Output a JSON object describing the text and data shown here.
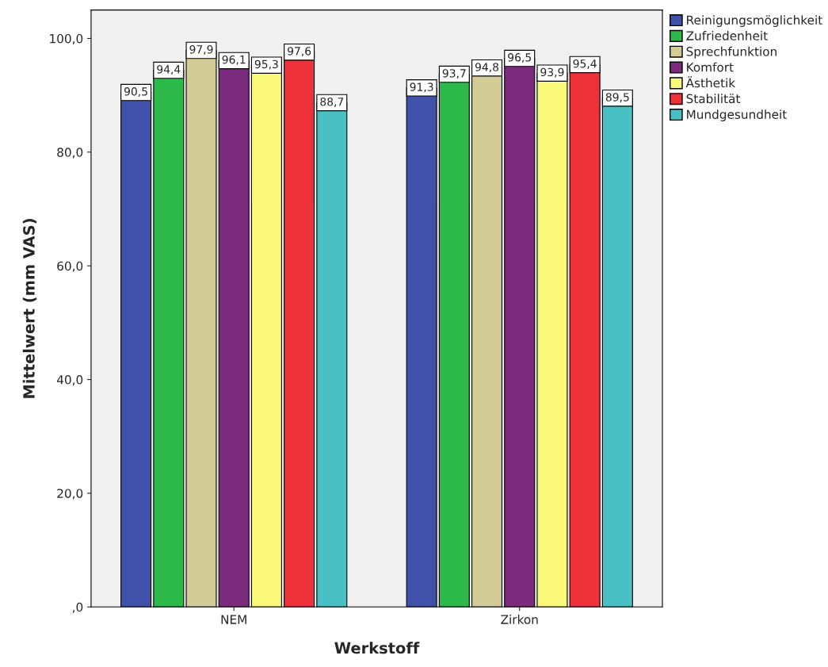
{
  "chart_data": {
    "type": "bar",
    "xlabel": "Werkstoff",
    "ylabel": "Mittelwert (mm VAS)",
    "categories": [
      "NEM",
      "Zirkon"
    ],
    "series": [
      {
        "name": "Reinigungsmöglichkeit",
        "color": "#3f51a8",
        "values": [
          90.5,
          91.3
        ],
        "value_labels": [
          "90,5",
          "91,3"
        ]
      },
      {
        "name": "Zufriedenheit",
        "color": "#2db84a",
        "values": [
          94.4,
          93.7
        ],
        "value_labels": [
          "94,4",
          "93,7"
        ]
      },
      {
        "name": "Sprechfunktion",
        "color": "#d3cc96",
        "values": [
          97.9,
          94.8
        ],
        "value_labels": [
          "97,9",
          "94,8"
        ]
      },
      {
        "name": "Komfort",
        "color": "#7b2a7e",
        "values": [
          96.1,
          96.5
        ],
        "value_labels": [
          "96,1",
          "96,5"
        ]
      },
      {
        "name": "Ästhetik",
        "color": "#fbf97a",
        "values": [
          95.3,
          93.9
        ],
        "value_labels": [
          "95,3",
          "93,9"
        ]
      },
      {
        "name": "Stabilität",
        "color": "#ef3139",
        "values": [
          97.6,
          95.4
        ],
        "value_labels": [
          "97,6",
          "95,4"
        ]
      },
      {
        "name": "Mundgesundheit",
        "color": "#48c0c4",
        "values": [
          88.7,
          89.5
        ],
        "value_labels": [
          "88,7",
          "89,5"
        ]
      }
    ],
    "ylim": [
      0,
      105
    ],
    "yticks": [
      {
        "value": 0,
        "label": ",0"
      },
      {
        "value": 20,
        "label": "20,0"
      },
      {
        "value": 40,
        "label": "40,0"
      },
      {
        "value": 60,
        "label": "60,0"
      },
      {
        "value": 80,
        "label": "80,0"
      },
      {
        "value": 100,
        "label": "100,0"
      }
    ],
    "grid": false,
    "legend": "top right"
  }
}
